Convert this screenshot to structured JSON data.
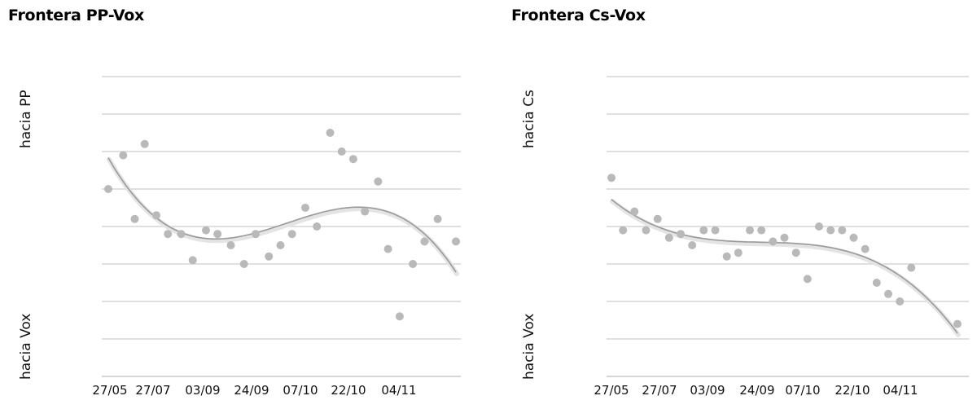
{
  "chart_data": [
    {
      "type": "scatter",
      "title": "Frontera PP-Vox",
      "ylabel_top": "hacia PP",
      "ylabel_bottom": "hacia Vox",
      "tick_labels": [
        "27/05",
        "27/07",
        "03/09",
        "24/09",
        "07/10",
        "22/10",
        "04/11"
      ],
      "grid": true,
      "trendline": "smoothed polynomial fit",
      "series": [
        {
          "points": [
            [
              0,
              5.0
            ],
            [
              0.9,
              5.9
            ],
            [
              1.6,
              4.2
            ],
            [
              2.2,
              6.2
            ],
            [
              2.9,
              4.3
            ],
            [
              3.6,
              3.8
            ],
            [
              4.4,
              3.8
            ],
            [
              5.1,
              3.1
            ],
            [
              5.9,
              3.9
            ],
            [
              6.6,
              3.8
            ],
            [
              7.4,
              3.5
            ],
            [
              8.2,
              3.0
            ],
            [
              8.9,
              3.8
            ],
            [
              9.7,
              3.2
            ],
            [
              10.4,
              3.5
            ],
            [
              11.1,
              3.8
            ],
            [
              11.9,
              4.5
            ],
            [
              12.6,
              4.0
            ],
            [
              13.4,
              6.5
            ],
            [
              14.1,
              6.0
            ],
            [
              14.8,
              5.8
            ],
            [
              15.5,
              4.4
            ],
            [
              16.3,
              5.2
            ],
            [
              16.9,
              3.4
            ],
            [
              17.6,
              1.6
            ],
            [
              18.4,
              3.0
            ],
            [
              19.1,
              3.6
            ],
            [
              19.9,
              4.2
            ],
            [
              21.0,
              3.6
            ]
          ]
        }
      ]
    },
    {
      "type": "scatter",
      "title": "Frontera Cs-Vox",
      "ylabel_top": "hacia Cs",
      "ylabel_bottom": "hacia Vox",
      "tick_labels": [
        "27/05",
        "27/07",
        "03/09",
        "24/09",
        "07/10",
        "22/10",
        "04/11"
      ],
      "grid": true,
      "trendline": "smoothed polynomial fit",
      "series": [
        {
          "points": [
            [
              0,
              5.3
            ],
            [
              0.7,
              3.9
            ],
            [
              1.4,
              4.4
            ],
            [
              2.1,
              3.9
            ],
            [
              2.8,
              4.2
            ],
            [
              3.5,
              3.7
            ],
            [
              4.2,
              3.8
            ],
            [
              4.9,
              3.5
            ],
            [
              5.6,
              3.9
            ],
            [
              6.3,
              3.9
            ],
            [
              7.0,
              3.2
            ],
            [
              7.7,
              3.3
            ],
            [
              8.4,
              3.9
            ],
            [
              9.1,
              3.9
            ],
            [
              9.8,
              3.6
            ],
            [
              10.5,
              3.7
            ],
            [
              11.2,
              3.3
            ],
            [
              11.9,
              2.6
            ],
            [
              12.6,
              4.0
            ],
            [
              13.3,
              3.9
            ],
            [
              14.0,
              3.9
            ],
            [
              14.7,
              3.7
            ],
            [
              15.4,
              3.4
            ],
            [
              16.1,
              2.5
            ],
            [
              16.8,
              2.2
            ],
            [
              17.5,
              2.0
            ],
            [
              18.2,
              2.9
            ],
            [
              21.0,
              1.4
            ]
          ]
        }
      ]
    }
  ]
}
